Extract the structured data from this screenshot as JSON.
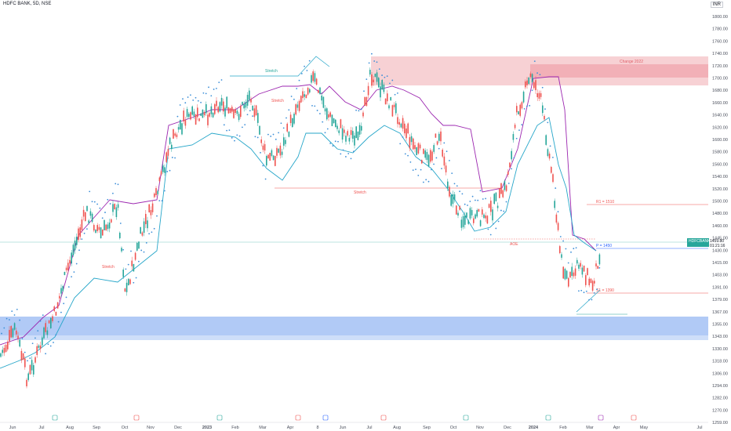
{
  "symbol": "HDFC BANK, 5D, NSE",
  "currency": "INR",
  "chart_data": {
    "type": "candlestick",
    "y_ticks": [
      1800,
      1780,
      1760,
      1740,
      1720,
      1700,
      1680,
      1660,
      1640,
      1620,
      1600,
      1580,
      1560,
      1540,
      1520,
      1500,
      1480,
      1460,
      1445,
      1430,
      1415,
      1403,
      1391,
      1379,
      1367,
      1355,
      1343,
      1330,
      1318,
      1306,
      1294,
      1282,
      1270,
      1259,
      1248,
      1237
    ],
    "y_tick_labels": [
      "1800.00",
      "1780.00",
      "1760.00",
      "1740.00",
      "1720.00",
      "1700.00",
      "1680.00",
      "1660.00",
      "1640.00",
      "1620.00",
      "1600.00",
      "1580.00",
      "1560.00",
      "1540.00",
      "1520.00",
      "1500.00",
      "1480.00",
      "1460.00",
      "1445.00",
      "1430.00",
      "1415.00",
      "1403.00",
      "1391.00",
      "1379.00",
      "1367.00",
      "1355.00",
      "1343.00",
      "1330.00",
      "1318.00",
      "1306.00",
      "1294.00",
      "1282.00",
      "1270.00",
      "1259.00",
      "1248.00",
      "1237.00"
    ],
    "x_labels": [
      "Jun",
      "Jul",
      "Aug",
      "Sep",
      "Oct",
      "Nov",
      "Dec",
      "2023",
      "Feb",
      "Mar",
      "Apr",
      "8",
      "Jun",
      "Jul",
      "Aug",
      "Sep",
      "Oct",
      "Nov",
      "Dec",
      "2024",
      "Feb",
      "Mar",
      "Apr",
      "May",
      "Jul"
    ],
    "price_label": {
      "name": "HDFCBANK",
      "value": "1459.80",
      "sub": "01:21:16"
    },
    "levels": [
      {
        "label": "R1 = 1510",
        "value": 1510
      },
      {
        "label": "P = 1450",
        "value": 1450
      },
      {
        "label": "S1 = 1390",
        "value": 1390
      }
    ],
    "zones": [
      {
        "kind": "supply",
        "from": 1690,
        "to": 1732,
        "label": "Change 2022"
      },
      {
        "kind": "demand",
        "from": 1332,
        "to": 1358
      }
    ],
    "annotations": [
      "Stretch",
      "Stretch",
      "Stretch",
      "Stretch",
      "AOE",
      "Stretch",
      "Stretch"
    ]
  }
}
